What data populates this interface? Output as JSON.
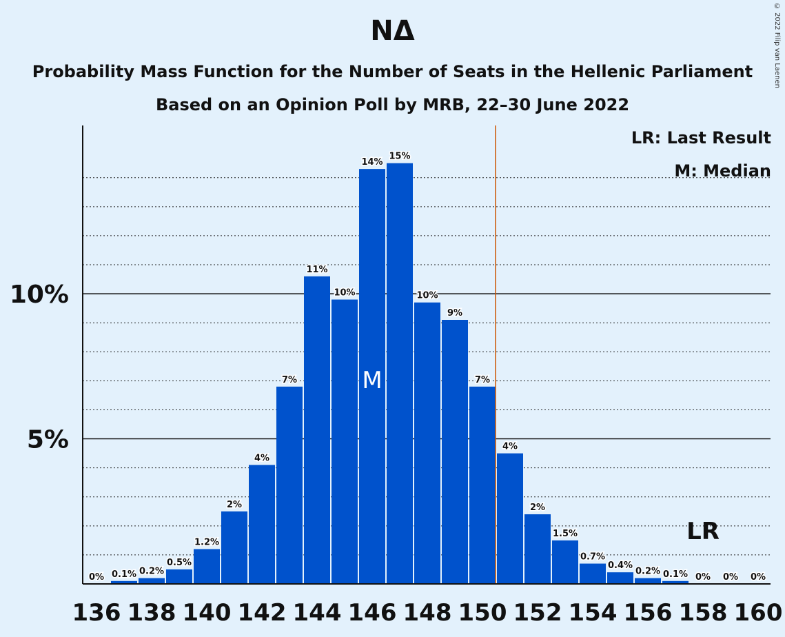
{
  "title": "ΝΔ",
  "subtitle": "Probability Mass Function for the Number of Seats in the Hellenic Parliament",
  "subtitle2": "Based on an Opinion Poll by MRB, 22–30 June 2022",
  "copyright": "© 2022 Filip van Laenen",
  "legend": {
    "last_result": "LR: Last Result",
    "median": "M: Median"
  },
  "colors": {
    "bar": "#0052cc",
    "median_line": "#cc5500",
    "background": "#e3f1fc"
  },
  "chart_data": {
    "type": "bar",
    "x": [
      136,
      137,
      138,
      139,
      140,
      141,
      142,
      143,
      144,
      145,
      146,
      147,
      148,
      149,
      150,
      151,
      152,
      153,
      154,
      155,
      156,
      157,
      158,
      159,
      160
    ],
    "values": [
      0,
      0.1,
      0.2,
      0.5,
      1.2,
      2.5,
      4.1,
      6.8,
      10.6,
      9.8,
      14.3,
      14.5,
      9.7,
      9.1,
      6.8,
      4.5,
      2.4,
      1.5,
      0.7,
      0.4,
      0.2,
      0.1,
      0,
      0,
      0
    ],
    "value_labels": [
      "0%",
      "0.1%",
      "0.2%",
      "0.5%",
      "1.2%",
      "2%",
      "4%",
      "7%",
      "11%",
      "10%",
      "14%",
      "15%",
      "10%",
      "9%",
      "7%",
      "4%",
      "2%",
      "1.5%",
      "0.7%",
      "0.4%",
      "0.2%",
      "0.1%",
      "0%",
      "0%",
      "0%"
    ],
    "x_ticks": [
      "136",
      "138",
      "140",
      "142",
      "144",
      "146",
      "148",
      "150",
      "152",
      "154",
      "156",
      "158",
      "160"
    ],
    "y_ticks": [
      {
        "value": 5,
        "label": "5%"
      },
      {
        "value": 10,
        "label": "10%"
      }
    ],
    "ylim": [
      0,
      15.8
    ],
    "median_seat": 146,
    "median_marker": "M",
    "last_result_seat": 158,
    "last_result_marker": "LR",
    "threshold_line_after_seat": 150,
    "grid": "dotted every 1%"
  }
}
